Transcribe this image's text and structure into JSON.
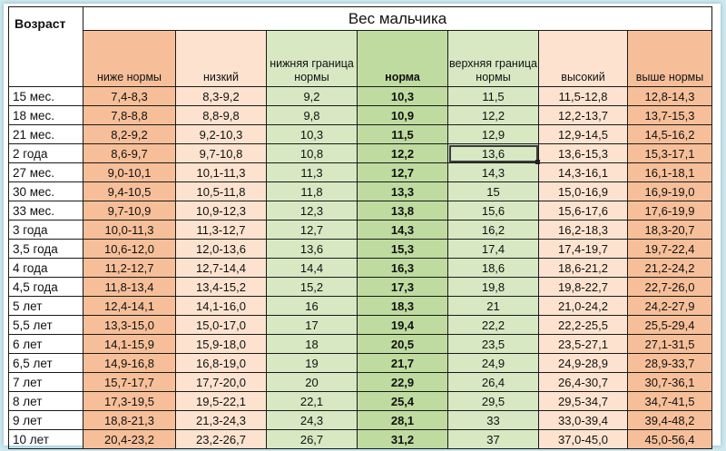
{
  "table": {
    "title": "Вес мальчика",
    "age_header": "Возраст",
    "columns": [
      {
        "key": "below",
        "label": "ниже нормы"
      },
      {
        "key": "low",
        "label": "низкий"
      },
      {
        "key": "lower",
        "label": "нижняя граница нормы"
      },
      {
        "key": "norm",
        "label": "норма"
      },
      {
        "key": "upper",
        "label": "верхняя граница нормы"
      },
      {
        "key": "high",
        "label": "высокий"
      },
      {
        "key": "above",
        "label": "выше нормы"
      }
    ],
    "rows": [
      {
        "age": "15 мес.",
        "values": [
          "7,4-8,3",
          "8,3-9,2",
          "9,2",
          "10,3",
          "11,5",
          "11,5-12,8",
          "12,8-14,3"
        ]
      },
      {
        "age": "18 мес.",
        "values": [
          "7,8-8,8",
          "8,8-9,8",
          "9,8",
          "10,9",
          "12,2",
          "12,2-13,7",
          "13,7-15,3"
        ]
      },
      {
        "age": "21 мес.",
        "values": [
          "8,2-9,2",
          "9,2-10,3",
          "10,3",
          "11,5",
          "12,9",
          "12,9-14,5",
          "14,5-16,2"
        ]
      },
      {
        "age": "2 года",
        "values": [
          "8,6-9,7",
          "9,7-10,8",
          "10,8",
          "12,2",
          "13,6",
          "13,6-15,3",
          "15,3-17,1"
        ]
      },
      {
        "age": "27 мес.",
        "values": [
          "9,0-10,1",
          "10,1-11,3",
          "11,3",
          "12,7",
          "14,3",
          "14,3-16,1",
          "16,1-18,1"
        ]
      },
      {
        "age": "30 мес.",
        "values": [
          "9,4-10,5",
          "10,5-11,8",
          "11,8",
          "13,3",
          "15",
          "15,0-16,9",
          "16,9-19,0"
        ]
      },
      {
        "age": "33 мес.",
        "values": [
          "9,7-10,9",
          "10,9-12,3",
          "12,3",
          "13,8",
          "15,6",
          "15,6-17,6",
          "17,6-19,9"
        ]
      },
      {
        "age": "3 года",
        "values": [
          "10,0-11,3",
          "11,3-12,7",
          "12,7",
          "14,3",
          "16,2",
          "16,2-18,3",
          "18,3-20,7"
        ]
      },
      {
        "age": "3,5 года",
        "values": [
          "10,6-12,0",
          "12,0-13,6",
          "13,6",
          "15,3",
          "17,4",
          "17,4-19,7",
          "19,7-22,4"
        ]
      },
      {
        "age": "4 года",
        "values": [
          "11,2-12,7",
          "12,7-14,4",
          "14,4",
          "16,3",
          "18,6",
          "18,6-21,2",
          "21,2-24,2"
        ]
      },
      {
        "age": "4,5 года",
        "values": [
          "11,8-13,4",
          "13,4-15,2",
          "15,2",
          "17,3",
          "19,8",
          "19,8-22,7",
          "22,7-26,0"
        ]
      },
      {
        "age": "5 лет",
        "values": [
          "12,4-14,1",
          "14,1-16,0",
          "16",
          "18,3",
          "21",
          "21,0-24,2",
          "24,2-27,9"
        ]
      },
      {
        "age": "5,5 лет",
        "values": [
          "13,3-15,0",
          "15,0-17,0",
          "17",
          "19,4",
          "22,2",
          "22,2-25,5",
          "25,5-29,4"
        ]
      },
      {
        "age": "6 лет",
        "values": [
          "14,1-15,9",
          "15,9-18,0",
          "18",
          "20,5",
          "23,5",
          "23,5-27,1",
          "27,1-31,5"
        ]
      },
      {
        "age": "6,5 лет",
        "values": [
          "14,9-16,8",
          "16,8-19,0",
          "19",
          "21,7",
          "24,9",
          "24,9-28,9",
          "28,9-33,7"
        ]
      },
      {
        "age": "7 лет",
        "values": [
          "15,7-17,7",
          "17,7-20,0",
          "20",
          "22,9",
          "26,4",
          "26,4-30,7",
          "30,7-36,1"
        ]
      },
      {
        "age": "8 лет",
        "values": [
          "17,3-19,5",
          "19,5-22,1",
          "22,1",
          "25,4",
          "29,5",
          "29,5-34,7",
          "34,7-41,5"
        ]
      },
      {
        "age": "9 лет",
        "values": [
          "18,8-21,3",
          "21,3-24,3",
          "24,3",
          "28,1",
          "33",
          "33,0-39,4",
          "39,4-48,2"
        ]
      },
      {
        "age": "10 лет",
        "values": [
          "20,4-23,2",
          "23,2-26,7",
          "26,7",
          "31,2",
          "37",
          "37,0-45,0",
          "45,0-56,4"
        ]
      }
    ],
    "selected_cell": {
      "row": 3,
      "col": 4
    },
    "colors": {
      "below_above": "#f6bf99",
      "low_high": "#fde3cf",
      "bounds": "#d7e8c3",
      "norm": "#bfdba0"
    }
  }
}
